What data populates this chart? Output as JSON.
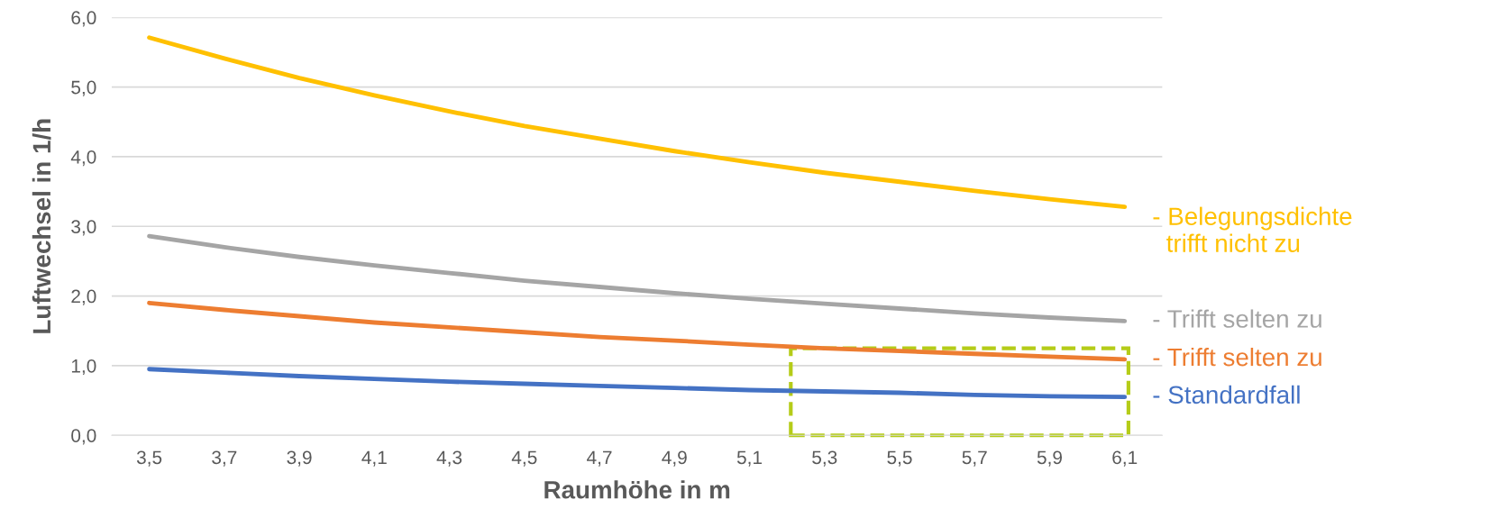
{
  "chart_data": {
    "type": "line",
    "xlabel": "Raumhöhe in m",
    "ylabel": "Luftwechsel in 1/h",
    "categories": [
      "3,5",
      "3,7",
      "3,9",
      "4,1",
      "4,3",
      "4,5",
      "4,7",
      "4,9",
      "5,1",
      "5,3",
      "5,5",
      "5,7",
      "5,9",
      "6,1"
    ],
    "series": [
      {
        "name": "- Belegungsdichte\n  trifft nicht zu",
        "color": "#ffc000",
        "values": [
          5.71,
          5.41,
          5.13,
          4.88,
          4.65,
          4.44,
          4.26,
          4.08,
          3.92,
          3.77,
          3.64,
          3.51,
          3.39,
          3.28
        ]
      },
      {
        "name": "- Trifft selten zu",
        "color": "#a5a5a5",
        "values": [
          2.86,
          2.7,
          2.56,
          2.44,
          2.33,
          2.22,
          2.13,
          2.04,
          1.96,
          1.89,
          1.82,
          1.75,
          1.69,
          1.64
        ]
      },
      {
        "name": "- Trifft selten zu",
        "color": "#ed7d31",
        "values": [
          1.9,
          1.8,
          1.71,
          1.62,
          1.55,
          1.48,
          1.41,
          1.36,
          1.3,
          1.25,
          1.21,
          1.17,
          1.13,
          1.09
        ]
      },
      {
        "name": "- Standardfall",
        "color": "#4472c4",
        "values": [
          0.95,
          0.9,
          0.85,
          0.81,
          0.77,
          0.74,
          0.71,
          0.68,
          0.65,
          0.63,
          0.61,
          0.58,
          0.56,
          0.55
        ]
      }
    ],
    "ylim": [
      0,
      6
    ],
    "yticks": [
      {
        "value": 0,
        "label": "0,0"
      },
      {
        "value": 1,
        "label": "1,0"
      },
      {
        "value": 2,
        "label": "2,0"
      },
      {
        "value": 3,
        "label": "3,0"
      },
      {
        "value": 4,
        "label": "4,0"
      },
      {
        "value": 5,
        "label": "5,0"
      },
      {
        "value": 6,
        "label": "6,0"
      }
    ],
    "grid": "y",
    "legend": false,
    "marker": "none",
    "line_style": "solid"
  }
}
